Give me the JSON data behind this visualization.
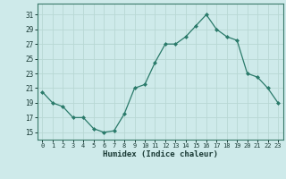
{
  "x": [
    0,
    1,
    2,
    3,
    4,
    5,
    6,
    7,
    8,
    9,
    10,
    11,
    12,
    13,
    14,
    15,
    16,
    17,
    18,
    19,
    20,
    21,
    22,
    23
  ],
  "y": [
    20.5,
    19,
    18.5,
    17,
    17,
    15.5,
    15,
    15.2,
    17.5,
    21,
    21.5,
    24.5,
    27,
    27,
    28,
    29.5,
    31,
    29,
    28,
    27.5,
    23,
    22.5,
    21,
    19
  ],
  "line_color": "#2a7a6a",
  "marker_color": "#2a7a6a",
  "bg_color": "#ceeaea",
  "grid_major_color": "#b8d8d4",
  "grid_minor_color": "#c8e4e0",
  "xlabel": "Humidex (Indice chaleur)",
  "yticks": [
    15,
    17,
    19,
    21,
    23,
    25,
    27,
    29,
    31
  ],
  "xticks": [
    0,
    1,
    2,
    3,
    4,
    5,
    6,
    7,
    8,
    9,
    10,
    11,
    12,
    13,
    14,
    15,
    16,
    17,
    18,
    19,
    20,
    21,
    22,
    23
  ],
  "ylim": [
    14,
    32.5
  ],
  "xlim": [
    -0.5,
    23.5
  ]
}
